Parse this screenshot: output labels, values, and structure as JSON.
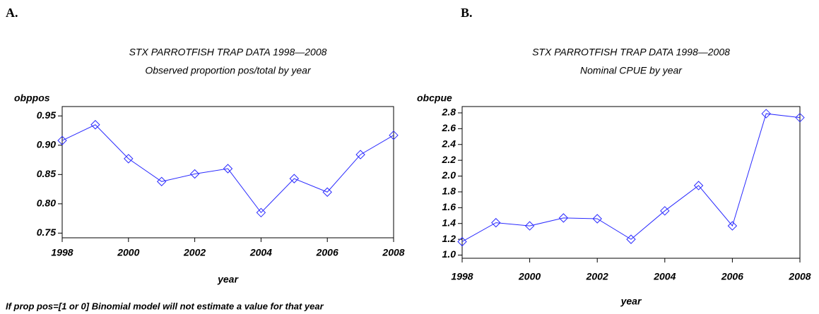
{
  "chart_data": [
    {
      "type": "line",
      "panel_label": "A.",
      "title": "STX PARROTFISH TRAP DATA 1998—2008",
      "subtitle": "Observed proportion pos/total by year",
      "y_label": "obppos",
      "x_label": "year",
      "footnote": "If prop pos=[1 or 0] Binomial model will not estimate a value for that year",
      "x": [
        1998,
        1999,
        2000,
        2001,
        2002,
        2003,
        2004,
        2005,
        2006,
        2007,
        2008
      ],
      "values": [
        0.908,
        0.935,
        0.877,
        0.838,
        0.851,
        0.86,
        0.785,
        0.843,
        0.82,
        0.884,
        0.917
      ],
      "color": "#2a2aff",
      "marker": "diamond",
      "xlim": [
        1998,
        2008
      ],
      "xticks": [
        1998,
        2000,
        2002,
        2004,
        2006,
        2008
      ],
      "ylim": [
        0.742,
        0.966
      ],
      "yticks": [
        0.75,
        {
          "value": 0.8,
          "label": "0.80"
        },
        0.85,
        {
          "value": 0.9,
          "label": "0.90"
        },
        0.95
      ],
      "grid": false
    },
    {
      "type": "line",
      "panel_label": "B.",
      "title": "STX PARROTFISH TRAP DATA 1998—2008",
      "subtitle": "Nominal CPUE by year",
      "y_label": "obcpue",
      "x_label": "year",
      "x": [
        1998,
        1999,
        2000,
        2001,
        2002,
        2003,
        2004,
        2005,
        2006,
        2007,
        2008
      ],
      "values": [
        1.17,
        1.41,
        1.37,
        1.47,
        1.46,
        1.2,
        1.56,
        1.88,
        1.37,
        2.79,
        2.74
      ],
      "color": "#2a2aff",
      "marker": "diamond",
      "xlim": [
        1998,
        2008
      ],
      "xticks": [
        1998,
        2000,
        2002,
        2004,
        2006,
        2008
      ],
      "ylim": [
        0.96,
        2.88
      ],
      "yticks": [
        {
          "value": 1,
          "label": "1.0"
        },
        1.2,
        1.4,
        1.6,
        1.8,
        {
          "value": 2,
          "label": "2.0"
        },
        2.2,
        2.4,
        2.6,
        2.8
      ],
      "grid": false
    }
  ]
}
